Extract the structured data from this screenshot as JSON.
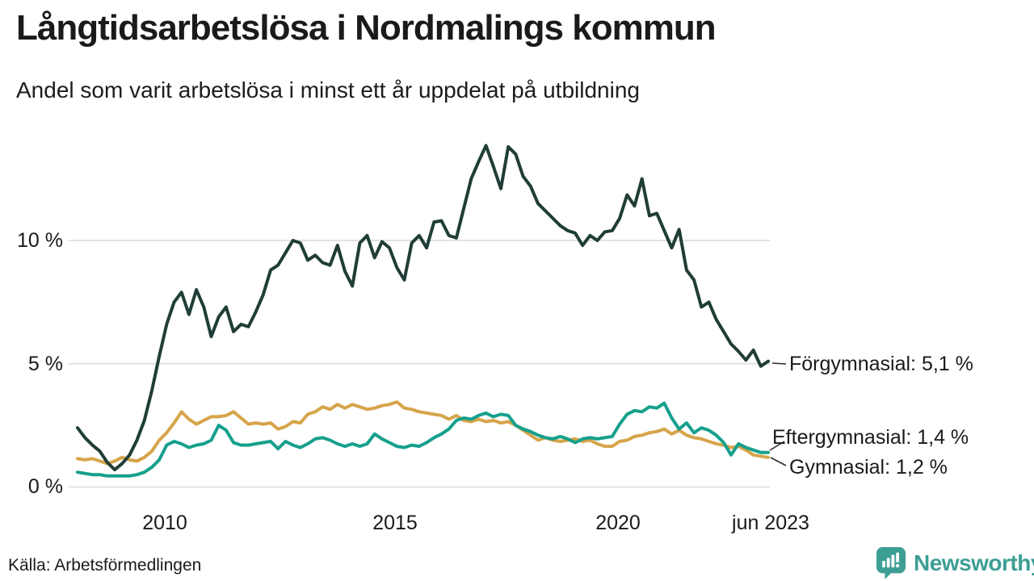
{
  "chart_data": {
    "type": "line",
    "title": "Långtidsarbetslösa i Nordmalings kommun",
    "subtitle": "Andel som varit arbetslösa i minst ett år uppdelat på utbildning",
    "xlabel": "",
    "ylabel": "",
    "x_range": [
      2008.0,
      2023.42
    ],
    "ylim": [
      0,
      14.5
    ],
    "grid": true,
    "legend_position": "end-of-line labels, right side",
    "x_ticks": [
      {
        "label": "2010",
        "value": 2010
      },
      {
        "label": "2015",
        "value": 2015
      },
      {
        "label": "2020",
        "value": 2020
      },
      {
        "label": "jun 2023",
        "value": 2023.42
      }
    ],
    "y_ticks": [
      {
        "label": "0 %",
        "value": 0
      },
      {
        "label": "5 %",
        "value": 5
      },
      {
        "label": "10 %",
        "value": 10
      }
    ],
    "series": [
      {
        "name": "Förgymnasial",
        "color": "#203d37",
        "end_label": "Förgymnasial: 5,1 %",
        "end_value": 5.1,
        "values": [
          2.4,
          2.0,
          1.7,
          1.45,
          1.0,
          0.7,
          0.95,
          1.3,
          1.9,
          2.7,
          3.9,
          5.3,
          6.6,
          7.5,
          7.9,
          7.0,
          8.0,
          7.3,
          6.1,
          6.9,
          7.3,
          6.3,
          6.6,
          6.5,
          7.1,
          7.8,
          8.8,
          9.0,
          9.5,
          10.0,
          9.9,
          9.2,
          9.4,
          9.1,
          9.0,
          9.8,
          8.75,
          8.15,
          9.9,
          10.2,
          9.3,
          9.95,
          9.7,
          8.9,
          8.4,
          9.9,
          10.2,
          9.7,
          10.75,
          10.8,
          10.2,
          10.1,
          11.3,
          12.5,
          13.2,
          13.85,
          13.0,
          12.1,
          13.8,
          13.5,
          12.6,
          12.2,
          11.5,
          11.2,
          10.9,
          10.6,
          10.4,
          10.3,
          9.8,
          10.2,
          10.0,
          10.35,
          10.4,
          10.9,
          11.85,
          11.4,
          12.5,
          11.0,
          11.1,
          10.4,
          9.7,
          10.45,
          8.8,
          8.4,
          7.3,
          7.5,
          6.8,
          6.3,
          5.8,
          5.5,
          5.15,
          5.55,
          4.9,
          5.1
        ]
      },
      {
        "name": "Eftergymnasial",
        "color": "#16a08c",
        "end_label": "Eftergymnasial: 1,4 %",
        "end_value": 1.4,
        "values": [
          0.6,
          0.55,
          0.5,
          0.5,
          0.45,
          0.45,
          0.45,
          0.45,
          0.5,
          0.6,
          0.8,
          1.1,
          1.7,
          1.85,
          1.75,
          1.6,
          1.7,
          1.75,
          1.9,
          2.5,
          2.3,
          1.8,
          1.7,
          1.7,
          1.75,
          1.8,
          1.85,
          1.55,
          1.85,
          1.7,
          1.6,
          1.75,
          1.95,
          2.0,
          1.9,
          1.75,
          1.65,
          1.75,
          1.65,
          1.75,
          2.15,
          1.95,
          1.8,
          1.65,
          1.6,
          1.7,
          1.65,
          1.8,
          2.0,
          2.15,
          2.35,
          2.7,
          2.8,
          2.75,
          2.9,
          3.0,
          2.85,
          2.95,
          2.9,
          2.5,
          2.35,
          2.25,
          2.1,
          2.0,
          1.95,
          2.05,
          1.95,
          1.8,
          1.95,
          2.0,
          1.95,
          2.0,
          2.05,
          2.55,
          2.95,
          3.1,
          3.05,
          3.25,
          3.2,
          3.4,
          2.8,
          2.35,
          2.6,
          2.2,
          2.4,
          2.3,
          2.1,
          1.8,
          1.3,
          1.75,
          1.6,
          1.5,
          1.4,
          1.4
        ]
      },
      {
        "name": "Gymnasial",
        "color": "#d6a44a",
        "end_label": "Gymnasial: 1,2 %",
        "end_value": 1.2,
        "values": [
          1.15,
          1.1,
          1.15,
          1.05,
          0.95,
          1.05,
          1.2,
          1.1,
          1.05,
          1.2,
          1.45,
          1.9,
          2.2,
          2.6,
          3.05,
          2.75,
          2.55,
          2.7,
          2.85,
          2.85,
          2.9,
          3.05,
          2.8,
          2.55,
          2.6,
          2.55,
          2.6,
          2.35,
          2.45,
          2.65,
          2.6,
          2.95,
          3.05,
          3.25,
          3.15,
          3.35,
          3.2,
          3.35,
          3.25,
          3.15,
          3.2,
          3.3,
          3.35,
          3.45,
          3.2,
          3.15,
          3.05,
          3.0,
          2.95,
          2.9,
          2.75,
          2.9,
          2.7,
          2.65,
          2.75,
          2.65,
          2.7,
          2.6,
          2.65,
          2.5,
          2.3,
          2.1,
          1.9,
          2.0,
          1.9,
          1.85,
          1.9,
          1.95,
          1.85,
          1.9,
          1.75,
          1.65,
          1.65,
          1.85,
          1.9,
          2.05,
          2.1,
          2.2,
          2.25,
          2.35,
          2.15,
          2.3,
          2.1,
          2.0,
          1.95,
          1.85,
          1.75,
          1.7,
          1.6,
          1.65,
          1.5,
          1.3,
          1.25,
          1.2
        ]
      }
    ]
  },
  "footer": {
    "source": "Källa: Arbetsförmedlingen",
    "brand": "Newsworthy",
    "brand_color": "#3d9e94"
  },
  "layout_colors": {
    "gridline": "#e2e2e2",
    "text": "#1a1a1a"
  }
}
